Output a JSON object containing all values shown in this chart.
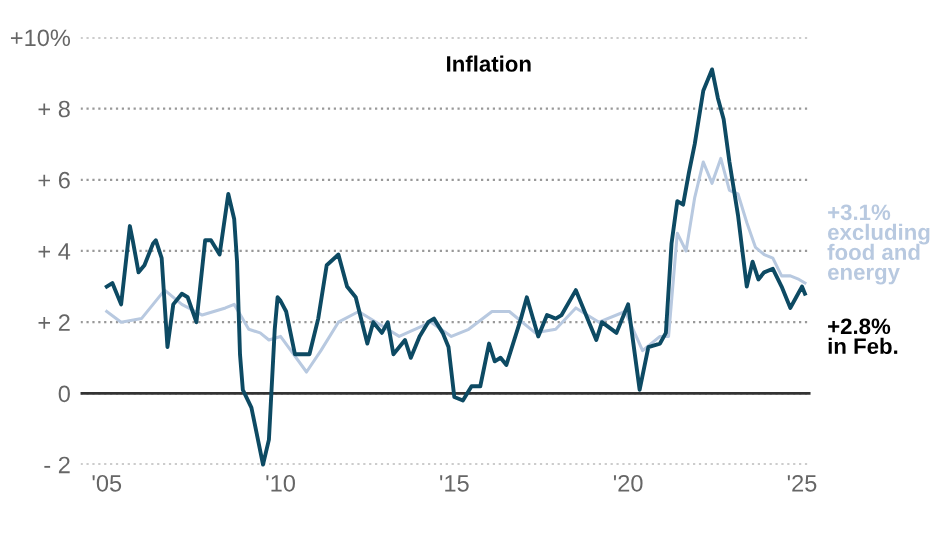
{
  "chart_data": {
    "type": "line",
    "title": "Inflation",
    "xlim": [
      "2004-04",
      "2025-04"
    ],
    "ylim": [
      -2,
      10
    ],
    "xticks": [
      {
        "value": "2005-01",
        "label": "'05"
      },
      {
        "value": "2010-01",
        "label": "'10"
      },
      {
        "value": "2015-01",
        "label": "'15"
      },
      {
        "value": "2020-01",
        "label": "'20"
      },
      {
        "value": "2025-01",
        "label": "'25"
      }
    ],
    "yticks": [
      {
        "value": -2,
        "label": "- 2"
      },
      0,
      {
        "value": 2,
        "label": "+ 2"
      },
      {
        "value": 4,
        "label": "+ 4"
      },
      {
        "value": 6,
        "label": "+ 6"
      },
      {
        "value": 8,
        "label": "+ 8"
      },
      {
        "value": 10,
        "label": "+10%"
      }
    ],
    "grid": "y",
    "line_style": "solid",
    "ref_lines": [
      {
        "axis": "y",
        "value": 0,
        "color": "#333333"
      }
    ],
    "series": [
      {
        "color": "#b8c9e0",
        "x": [
          "2005-01",
          "2005-06",
          "2006-01",
          "2006-09",
          "2007-03",
          "2007-10",
          "2008-06",
          "2008-09",
          "2009-02",
          "2009-06",
          "2009-09",
          "2010-01",
          "2010-10",
          "2011-03",
          "2011-09",
          "2012-04",
          "2012-12",
          "2013-06",
          "2014-05",
          "2014-12",
          "2015-06",
          "2016-02",
          "2016-08",
          "2017-05",
          "2017-12",
          "2018-07",
          "2019-03",
          "2019-12",
          "2020-06",
          "2020-12",
          "2021-03",
          "2021-06",
          "2021-09",
          "2021-12",
          "2022-03",
          "2022-06",
          "2022-09",
          "2022-12",
          "2023-03",
          "2023-06",
          "2023-09",
          "2023-12",
          "2024-03",
          "2024-06",
          "2024-09",
          "2024-12",
          "2025-02"
        ],
        "values": [
          2.3,
          2.0,
          2.1,
          2.9,
          2.5,
          2.2,
          2.4,
          2.5,
          1.8,
          1.7,
          1.5,
          1.6,
          0.6,
          1.2,
          2.0,
          2.3,
          1.9,
          1.6,
          2.0,
          1.6,
          1.8,
          2.3,
          2.3,
          1.7,
          1.8,
          2.4,
          2.0,
          2.3,
          1.2,
          1.6,
          1.6,
          4.5,
          4.0,
          5.5,
          6.5,
          5.9,
          6.6,
          5.7,
          5.6,
          4.8,
          4.1,
          3.9,
          3.8,
          3.3,
          3.3,
          3.2,
          3.1
        ]
      },
      {
        "color": "#0d4a63",
        "x": [
          "2005-01",
          "2005-03",
          "2005-06",
          "2005-09",
          "2005-10",
          "2005-12",
          "2006-02",
          "2006-05",
          "2006-06",
          "2006-08",
          "2006-10",
          "2006-12",
          "2007-03",
          "2007-05",
          "2007-08",
          "2007-11",
          "2008-01",
          "2008-04",
          "2008-07",
          "2008-09",
          "2008-10",
          "2008-11",
          "2008-12",
          "2009-03",
          "2009-07",
          "2009-09",
          "2009-11",
          "2009-12",
          "2010-01",
          "2010-03",
          "2010-06",
          "2010-11",
          "2011-02",
          "2011-05",
          "2011-09",
          "2011-12",
          "2012-03",
          "2012-07",
          "2012-09",
          "2012-12",
          "2013-02",
          "2013-04",
          "2013-08",
          "2013-10",
          "2014-01",
          "2014-04",
          "2014-06",
          "2014-09",
          "2014-11",
          "2015-01",
          "2015-04",
          "2015-07",
          "2015-10",
          "2016-01",
          "2016-03",
          "2016-05",
          "2016-07",
          "2016-12",
          "2017-02",
          "2017-06",
          "2017-09",
          "2017-12",
          "2018-02",
          "2018-07",
          "2018-12",
          "2019-02",
          "2019-04",
          "2019-09",
          "2019-12",
          "2020-01",
          "2020-05",
          "2020-08",
          "2020-12",
          "2021-02",
          "2021-04",
          "2021-06",
          "2021-08",
          "2021-10",
          "2021-12",
          "2022-03",
          "2022-06",
          "2022-08",
          "2022-10",
          "2022-12",
          "2023-03",
          "2023-06",
          "2023-08",
          "2023-10",
          "2023-12",
          "2024-03",
          "2024-06",
          "2024-09",
          "2024-11",
          "2025-01",
          "2025-02"
        ],
        "values": [
          3.0,
          3.1,
          2.5,
          4.7,
          4.3,
          3.4,
          3.6,
          4.2,
          4.3,
          3.8,
          1.3,
          2.5,
          2.8,
          2.7,
          2.0,
          4.3,
          4.3,
          3.9,
          5.6,
          4.9,
          3.7,
          1.1,
          0.1,
          -0.4,
          -2.0,
          -1.3,
          1.8,
          2.7,
          2.6,
          2.3,
          1.1,
          1.1,
          2.1,
          3.6,
          3.9,
          3.0,
          2.7,
          1.4,
          2.0,
          1.7,
          2.0,
          1.1,
          1.5,
          1.0,
          1.6,
          2.0,
          2.1,
          1.7,
          1.3,
          -0.1,
          -0.2,
          0.2,
          0.2,
          1.4,
          0.9,
          1.0,
          0.8,
          2.1,
          2.7,
          1.6,
          2.2,
          2.1,
          2.2,
          2.9,
          1.9,
          1.5,
          2.0,
          1.7,
          2.3,
          2.5,
          0.1,
          1.3,
          1.4,
          1.7,
          4.2,
          5.4,
          5.3,
          6.2,
          7.0,
          8.5,
          9.1,
          8.3,
          7.7,
          6.5,
          5.0,
          3.0,
          3.7,
          3.2,
          3.4,
          3.5,
          3.0,
          2.4,
          2.7,
          3.0,
          2.8
        ]
      }
    ],
    "annotations": [
      {
        "text": "+3.1%\nexcluding\nfood and\nenergy",
        "x": "2025-02",
        "y": 3.1
      },
      {
        "text": "+2.8%\nin Feb.",
        "x": "2025-02",
        "y": 2.8
      }
    ]
  }
}
